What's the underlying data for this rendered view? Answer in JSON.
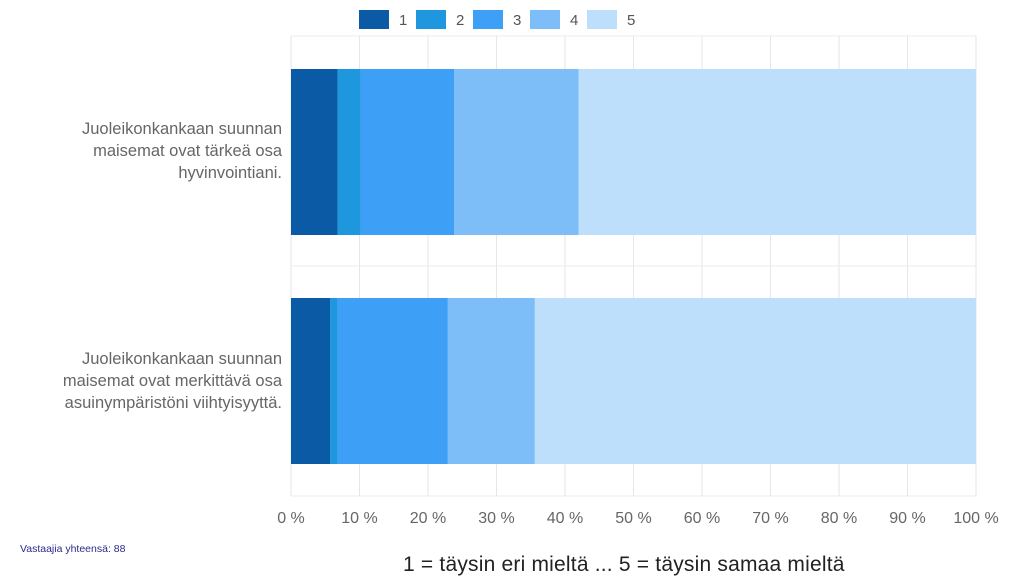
{
  "chart_data": {
    "type": "bar",
    "orientation": "horizontal",
    "stacked": true,
    "categories": [
      "Juoleikonkankaan suunnan maisemat ovat tärkeä osa hyvinvointiani.",
      "Juoleikonkankaan suunnan maisemat ovat merkittävä osa asuinympäristöni viihtyisyyttä."
    ],
    "category_lines": [
      [
        "Juoleikonkankaan suunnan",
        "maisemat ovat tärkeä osa",
        "hyvinvointiani."
      ],
      [
        "Juoleikonkankaan suunnan",
        "maisemat ovat merkittävä osa",
        "asuinympäristöni viihtyisyyttä."
      ]
    ],
    "series": [
      {
        "name": "1",
        "color": "#0b5aa6",
        "values": [
          6.8,
          5.7
        ]
      },
      {
        "name": "2",
        "color": "#1f97de",
        "values": [
          3.4,
          1.1
        ]
      },
      {
        "name": "3",
        "color": "#3d9ff5",
        "values": [
          13.6,
          16.1
        ]
      },
      {
        "name": "4",
        "color": "#7dbef8",
        "values": [
          18.2,
          12.7
        ]
      },
      {
        "name": "5",
        "color": "#bddffb",
        "values": [
          58.0,
          64.4
        ]
      }
    ],
    "xlim": [
      0,
      100
    ],
    "xticks": [
      "0 %",
      "10 %",
      "20 %",
      "30 %",
      "40 %",
      "50 %",
      "60 %",
      "70 %",
      "80 %",
      "90 %",
      "100 %"
    ],
    "legend_position": "top",
    "grid": true
  },
  "footer": {
    "total_label": "Vastaajia yhteensä: 88",
    "scale_note": "1 = täysin eri mieltä ... 5 = täysin samaa mieltä"
  }
}
